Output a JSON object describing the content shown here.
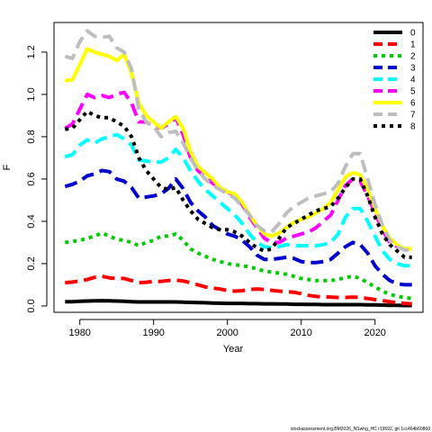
{
  "chart_data": {
    "type": "line",
    "title": "",
    "xlabel": "Year",
    "ylabel": "F",
    "xlim": [
      1976.5,
      2026.5
    ],
    "ylim": [
      -0.03,
      1.34
    ],
    "xticks": [
      1980,
      1990,
      2000,
      2010,
      2020
    ],
    "yticks": [
      0.0,
      0.2,
      0.4,
      0.6,
      0.8,
      1.0,
      1.2
    ],
    "grid": false,
    "legend_position": "top-right",
    "x": [
      1978,
      1979,
      1980,
      1981,
      1982,
      1983,
      1984,
      1985,
      1986,
      1987,
      1988,
      1989,
      1990,
      1991,
      1992,
      1993,
      1994,
      1995,
      1996,
      1997,
      1998,
      1999,
      2000,
      2001,
      2002,
      2003,
      2004,
      2005,
      2006,
      2007,
      2008,
      2009,
      2010,
      2011,
      2012,
      2013,
      2014,
      2015,
      2016,
      2017,
      2018,
      2019,
      2020,
      2021,
      2022,
      2023,
      2024,
      2025
    ],
    "series": [
      {
        "name": "0",
        "color": "#000000",
        "dash": "solid",
        "values": [
          0.02,
          0.02,
          0.022,
          0.023,
          0.024,
          0.025,
          0.024,
          0.023,
          0.022,
          0.02,
          0.019,
          0.019,
          0.019,
          0.019,
          0.019,
          0.019,
          0.018,
          0.017,
          0.016,
          0.015,
          0.014,
          0.013,
          0.012,
          0.012,
          0.012,
          0.011,
          0.011,
          0.01,
          0.01,
          0.009,
          0.009,
          0.008,
          0.008,
          0.007,
          0.007,
          0.006,
          0.006,
          0.006,
          0.006,
          0.006,
          0.006,
          0.005,
          0.005,
          0.004,
          0.003,
          0.003,
          0.002,
          0.002
        ]
      },
      {
        "name": "1",
        "color": "#ff0000",
        "dash": "dash",
        "values": [
          0.11,
          0.113,
          0.118,
          0.125,
          0.135,
          0.14,
          0.133,
          0.13,
          0.13,
          0.12,
          0.11,
          0.112,
          0.116,
          0.116,
          0.12,
          0.122,
          0.118,
          0.11,
          0.1,
          0.09,
          0.085,
          0.08,
          0.073,
          0.07,
          0.072,
          0.078,
          0.08,
          0.078,
          0.074,
          0.07,
          0.068,
          0.065,
          0.058,
          0.05,
          0.045,
          0.043,
          0.042,
          0.04,
          0.04,
          0.042,
          0.04,
          0.035,
          0.03,
          0.025,
          0.02,
          0.015,
          0.012,
          0.01
        ]
      },
      {
        "name": "2",
        "color": "#00cd00",
        "dash": "dot",
        "values": [
          0.3,
          0.305,
          0.31,
          0.32,
          0.33,
          0.345,
          0.33,
          0.315,
          0.31,
          0.3,
          0.285,
          0.3,
          0.31,
          0.33,
          0.33,
          0.34,
          0.31,
          0.27,
          0.25,
          0.235,
          0.22,
          0.21,
          0.2,
          0.195,
          0.19,
          0.185,
          0.175,
          0.165,
          0.16,
          0.155,
          0.15,
          0.14,
          0.13,
          0.125,
          0.12,
          0.12,
          0.12,
          0.125,
          0.135,
          0.14,
          0.13,
          0.11,
          0.09,
          0.07,
          0.055,
          0.045,
          0.04,
          0.035
        ]
      },
      {
        "name": "3",
        "color": "#0000cd",
        "dash": "dash",
        "values": [
          0.565,
          0.575,
          0.59,
          0.615,
          0.625,
          0.64,
          0.635,
          0.6,
          0.59,
          0.56,
          0.51,
          0.515,
          0.52,
          0.53,
          0.555,
          0.6,
          0.555,
          0.49,
          0.45,
          0.42,
          0.38,
          0.36,
          0.34,
          0.33,
          0.31,
          0.28,
          0.24,
          0.22,
          0.22,
          0.225,
          0.23,
          0.225,
          0.21,
          0.205,
          0.205,
          0.21,
          0.22,
          0.25,
          0.28,
          0.3,
          0.29,
          0.25,
          0.19,
          0.15,
          0.12,
          0.105,
          0.1,
          0.1
        ]
      },
      {
        "name": "4",
        "color": "#00ffff",
        "dash": "dash",
        "values": [
          0.705,
          0.715,
          0.76,
          0.785,
          0.77,
          0.79,
          0.8,
          0.81,
          0.79,
          0.76,
          0.69,
          0.685,
          0.68,
          0.68,
          0.7,
          0.74,
          0.7,
          0.64,
          0.59,
          0.55,
          0.52,
          0.49,
          0.46,
          0.43,
          0.39,
          0.34,
          0.3,
          0.28,
          0.275,
          0.28,
          0.29,
          0.285,
          0.285,
          0.285,
          0.285,
          0.29,
          0.3,
          0.34,
          0.42,
          0.46,
          0.46,
          0.4,
          0.33,
          0.26,
          0.22,
          0.2,
          0.19,
          0.19
        ]
      },
      {
        "name": "5",
        "color": "#ff00ff",
        "dash": "dash",
        "values": [
          0.84,
          0.86,
          0.93,
          1.0,
          0.985,
          0.995,
          0.985,
          1.0,
          1.01,
          0.96,
          0.87,
          0.87,
          0.85,
          0.84,
          0.86,
          0.89,
          0.81,
          0.7,
          0.64,
          0.61,
          0.58,
          0.56,
          0.54,
          0.52,
          0.48,
          0.42,
          0.37,
          0.32,
          0.3,
          0.3,
          0.32,
          0.33,
          0.34,
          0.35,
          0.37,
          0.4,
          0.43,
          0.5,
          0.57,
          0.6,
          0.59,
          0.52,
          0.44,
          0.36,
          0.3,
          0.28,
          0.27,
          0.27
        ]
      },
      {
        "name": "6",
        "color": "#ffff00",
        "dash": "solid",
        "values": [
          1.065,
          1.07,
          1.14,
          1.215,
          1.2,
          1.19,
          1.18,
          1.16,
          1.19,
          1.1,
          0.96,
          0.9,
          0.87,
          0.84,
          0.87,
          0.895,
          0.84,
          0.73,
          0.66,
          0.63,
          0.6,
          0.56,
          0.54,
          0.53,
          0.49,
          0.43,
          0.38,
          0.34,
          0.33,
          0.345,
          0.37,
          0.395,
          0.41,
          0.42,
          0.44,
          0.46,
          0.49,
          0.55,
          0.61,
          0.63,
          0.62,
          0.55,
          0.46,
          0.38,
          0.32,
          0.29,
          0.27,
          0.27
        ]
      },
      {
        "name": "7",
        "color": "#bebebe",
        "dash": "dash",
        "values": [
          1.18,
          1.17,
          1.25,
          1.3,
          1.275,
          1.27,
          1.275,
          1.22,
          1.2,
          1.12,
          0.93,
          0.87,
          0.85,
          0.8,
          0.82,
          0.825,
          0.77,
          0.7,
          0.64,
          0.6,
          0.57,
          0.55,
          0.53,
          0.51,
          0.47,
          0.43,
          0.38,
          0.355,
          0.35,
          0.39,
          0.44,
          0.47,
          0.49,
          0.51,
          0.52,
          0.53,
          0.54,
          0.58,
          0.66,
          0.72,
          0.72,
          0.6,
          0.48,
          0.38,
          0.31,
          0.28,
          0.265,
          0.265
        ]
      },
      {
        "name": "8",
        "color": "#000000",
        "dash": "dot",
        "values": [
          0.835,
          0.84,
          0.88,
          0.92,
          0.9,
          0.89,
          0.89,
          0.87,
          0.85,
          0.8,
          0.7,
          0.64,
          0.6,
          0.56,
          0.55,
          0.56,
          0.5,
          0.45,
          0.41,
          0.39,
          0.37,
          0.36,
          0.36,
          0.35,
          0.33,
          0.3,
          0.275,
          0.26,
          0.27,
          0.32,
          0.37,
          0.39,
          0.41,
          0.43,
          0.45,
          0.46,
          0.47,
          0.51,
          0.56,
          0.6,
          0.6,
          0.52,
          0.42,
          0.34,
          0.29,
          0.26,
          0.23,
          0.23
        ]
      }
    ]
  },
  "footer": {
    "text": "stockassessment.org,BM2026_NSwhg_HC r19592, git 1cc464b60860"
  }
}
